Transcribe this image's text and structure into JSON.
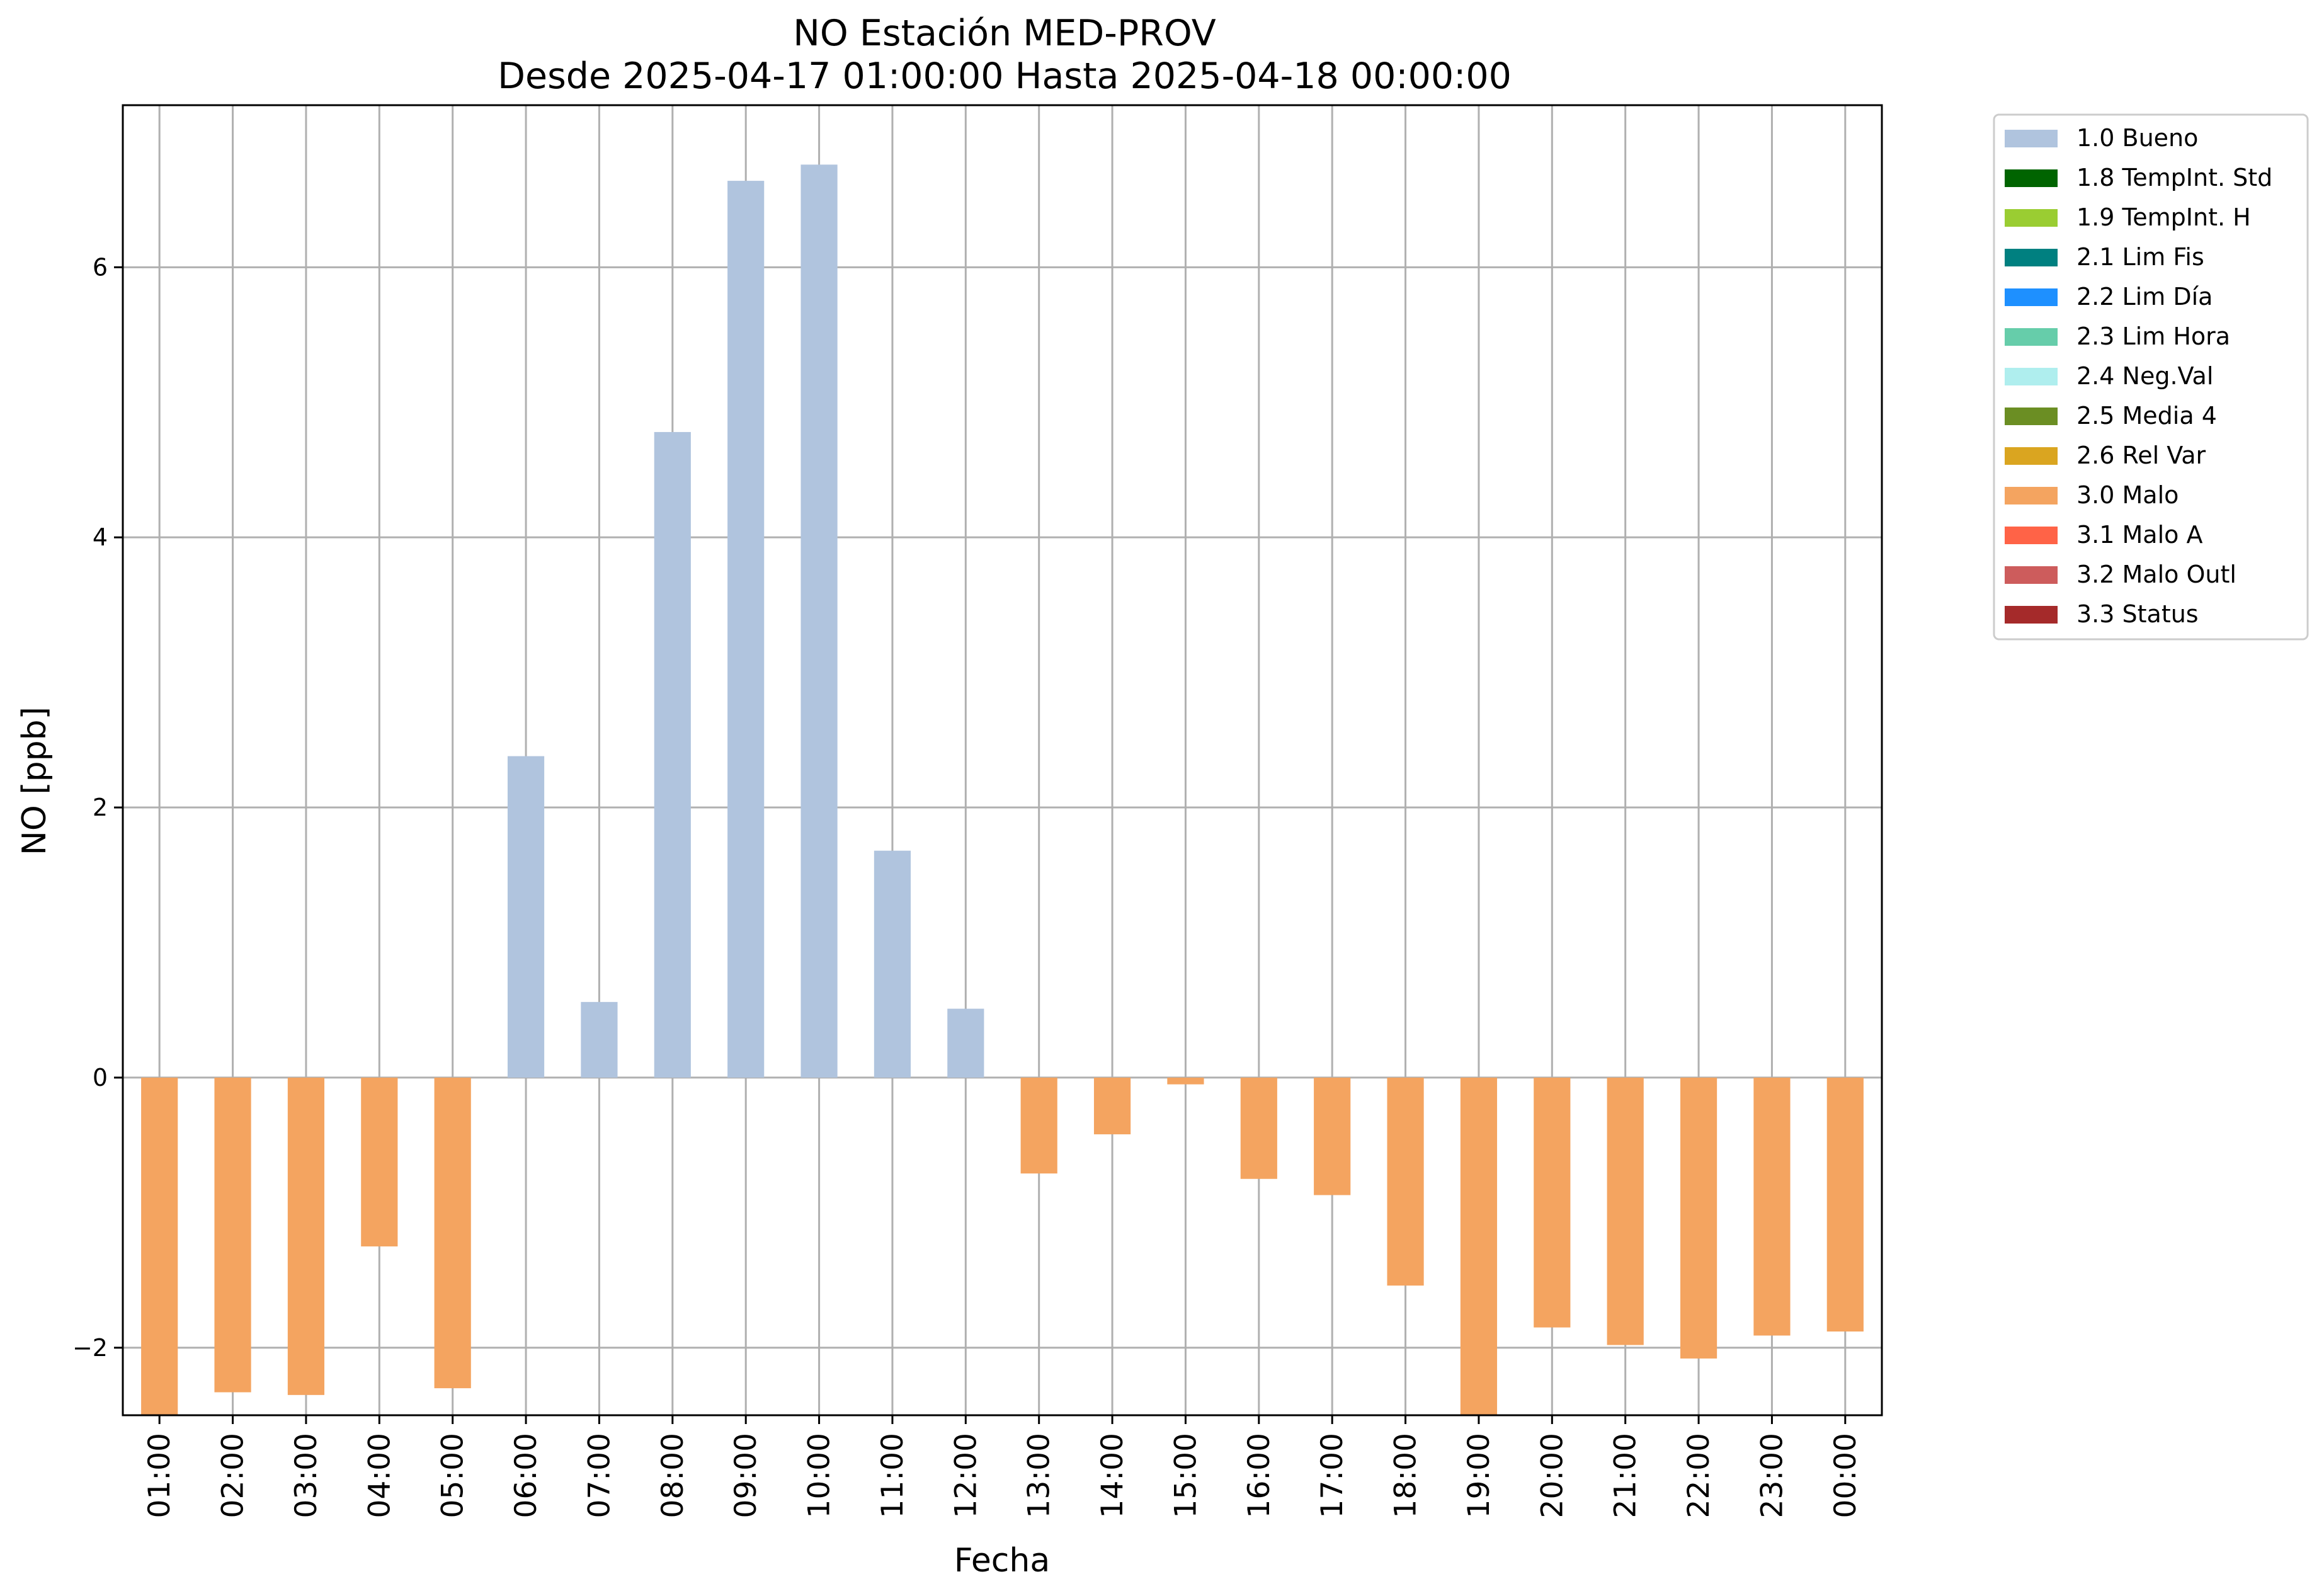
{
  "chart_data": {
    "type": "bar",
    "title": "NO Estación MED-PROV",
    "subtitle": "Desde 2025-04-17 01:00:00 Hasta 2025-04-18 00:00:00",
    "xlabel": "Fecha",
    "ylabel": "NO [ppb]",
    "ylim": [
      -2.5,
      7.2
    ],
    "yticks": [
      -2,
      0,
      2,
      4,
      6
    ],
    "ytick_labels": [
      "−2",
      "0",
      "2",
      "4",
      "6"
    ],
    "grid": true,
    "legend_position": "outside-right-top",
    "categories": [
      "01:00",
      "02:00",
      "03:00",
      "04:00",
      "05:00",
      "06:00",
      "07:00",
      "08:00",
      "09:00",
      "10:00",
      "11:00",
      "12:00",
      "13:00",
      "14:00",
      "15:00",
      "16:00",
      "17:00",
      "18:00",
      "19:00",
      "20:00",
      "21:00",
      "22:00",
      "23:00",
      "00:00"
    ],
    "values": [
      -2.5,
      -2.33,
      -2.35,
      -1.25,
      -2.3,
      2.38,
      0.56,
      4.78,
      6.64,
      6.76,
      1.68,
      0.51,
      -0.71,
      -0.42,
      -0.05,
      -0.75,
      -0.87,
      -1.54,
      -2.5,
      -1.85,
      -1.98,
      -2.08,
      -1.91,
      -1.88
    ],
    "flags": [
      "3.0 Malo",
      "3.0 Malo",
      "3.0 Malo",
      "3.0 Malo",
      "3.0 Malo",
      "1.0 Bueno",
      "1.0 Bueno",
      "1.0 Bueno",
      "1.0 Bueno",
      "1.0 Bueno",
      "1.0 Bueno",
      "1.0 Bueno",
      "3.0 Malo",
      "3.0 Malo",
      "3.0 Malo",
      "3.0 Malo",
      "3.0 Malo",
      "3.0 Malo",
      "3.0 Malo",
      "3.0 Malo",
      "3.0 Malo",
      "3.0 Malo",
      "3.0 Malo",
      "3.0 Malo"
    ],
    "legend": [
      {
        "label": "1.0 Bueno",
        "color": "#b0c4de"
      },
      {
        "label": "1.8 TempInt. Std",
        "color": "#006400"
      },
      {
        "label": "1.9 TempInt. H",
        "color": "#9acd32"
      },
      {
        "label": "2.1 Lim Fis",
        "color": "#008080"
      },
      {
        "label": "2.2 Lim Día",
        "color": "#1e90ff"
      },
      {
        "label": "2.3 Lim Hora",
        "color": "#66cdaa"
      },
      {
        "label": "2.4 Neg.Val",
        "color": "#afeeee"
      },
      {
        "label": "2.5 Media 4",
        "color": "#6b8e23"
      },
      {
        "label": "2.6 Rel Var",
        "color": "#daa520"
      },
      {
        "label": "3.0 Malo",
        "color": "#f4a460"
      },
      {
        "label": "3.1 Malo A",
        "color": "#ff6347"
      },
      {
        "label": "3.2 Malo Outl",
        "color": "#cd5c5c"
      },
      {
        "label": "3.3 Status",
        "color": "#a52a2a"
      }
    ]
  }
}
